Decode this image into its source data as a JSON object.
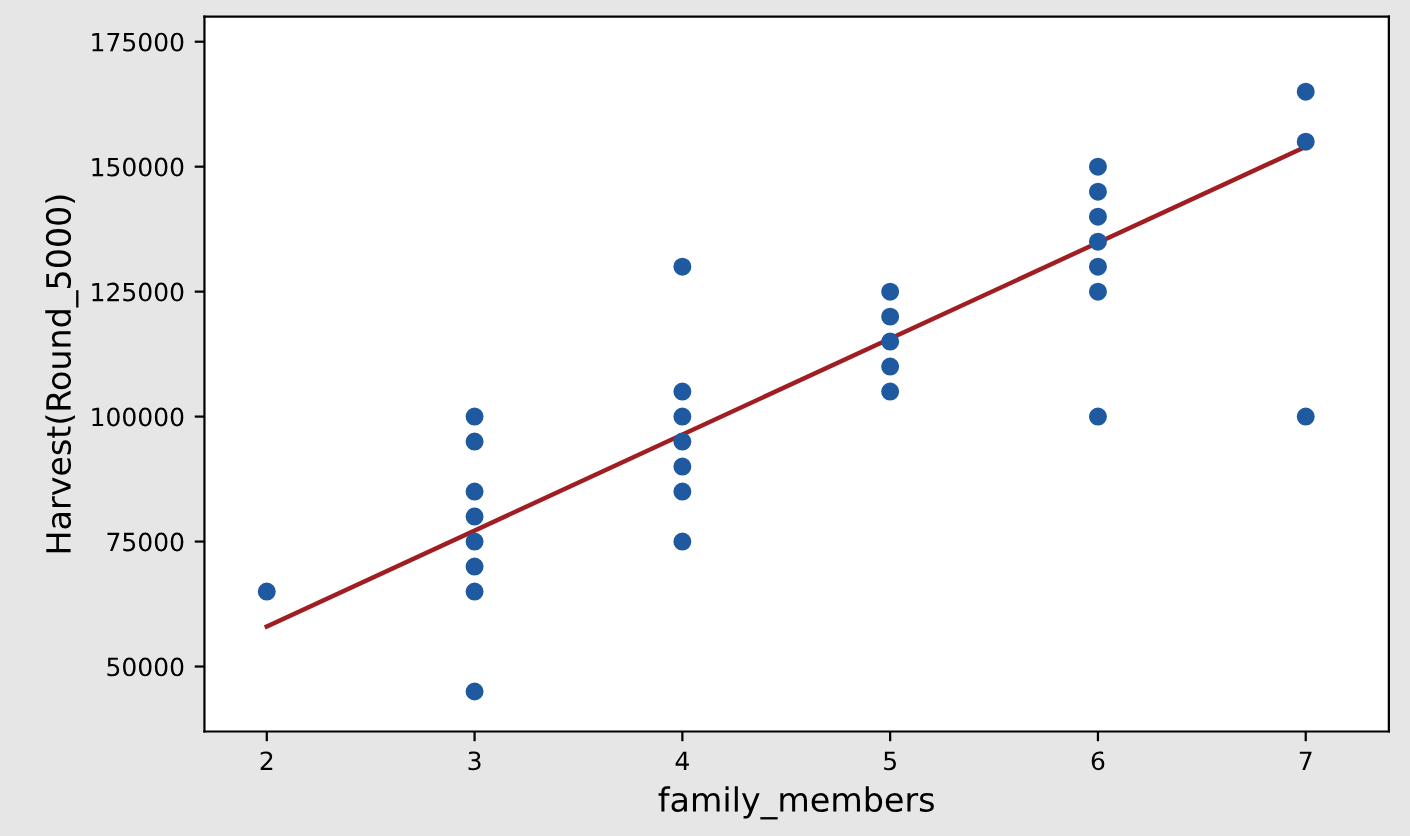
{
  "chart_data": {
    "type": "scatter",
    "xlabel": "family_members",
    "ylabel": "Harvest(Round_5000)",
    "xlim": [
      1.7,
      7.4
    ],
    "ylim": [
      37000,
      180000
    ],
    "xticks": [
      2,
      3,
      4,
      5,
      6,
      7
    ],
    "yticks": [
      50000,
      75000,
      100000,
      125000,
      150000,
      175000
    ],
    "grid": false,
    "legend": false,
    "series": [
      {
        "marker": "circle",
        "color": "#1f5aa0",
        "x": [
          2,
          3,
          3,
          3,
          3,
          3,
          3,
          3,
          3,
          4,
          4,
          4,
          4,
          4,
          4,
          4,
          5,
          5,
          5,
          5,
          5,
          6,
          6,
          6,
          6,
          6,
          6,
          6,
          7,
          7,
          7
        ],
        "values": [
          65000,
          100000,
          95000,
          85000,
          80000,
          75000,
          70000,
          65000,
          45000,
          130000,
          105000,
          100000,
          95000,
          90000,
          85000,
          75000,
          125000,
          120000,
          115000,
          110000,
          105000,
          150000,
          145000,
          140000,
          135000,
          130000,
          125000,
          100000,
          165000,
          155000,
          100000
        ]
      },
      {
        "type": "line",
        "color": "#a01e22",
        "x": [
          2,
          7
        ],
        "values": [
          58000,
          154000
        ]
      }
    ]
  }
}
